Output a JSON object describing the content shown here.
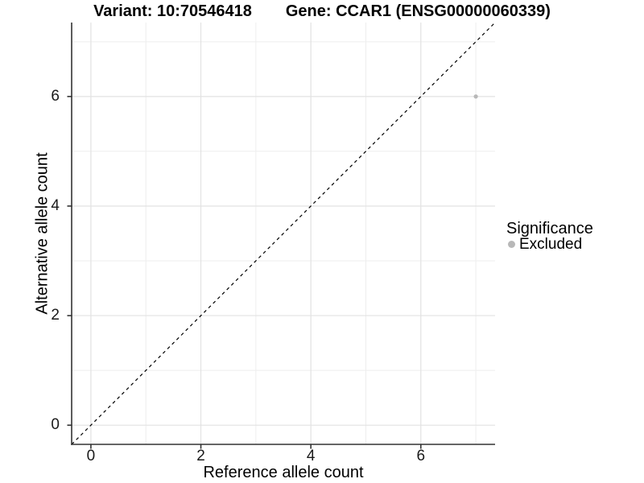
{
  "title": {
    "variant": "Variant: 10:70546418",
    "gene": "Gene: CCAR1 (ENSG00000060339)"
  },
  "axes": {
    "x_label": "Reference allele count",
    "y_label": "Alternative allele count",
    "x_tick_labels": [
      "0",
      "2",
      "4",
      "6"
    ],
    "y_tick_labels": [
      "0",
      "2",
      "4",
      "6"
    ]
  },
  "legend": {
    "title": "Significance",
    "items": [
      {
        "label": "Excluded",
        "color": "#b8b8b8"
      }
    ]
  },
  "colors": {
    "background": "#ffffff",
    "grid_major": "#e2e2e2",
    "grid_minor": "#eeeeee",
    "axis_line": "#333333",
    "tick_mark": "#333333",
    "tick_label": "#1a1a1a",
    "text": "#000000",
    "reference_line": "#000000",
    "point": "#b8b8b8"
  },
  "chart_data": {
    "type": "scatter",
    "title": "Variant: 10:70546418    Gene: CCAR1 (ENSG00000060339)",
    "xlabel": "Reference allele count",
    "ylabel": "Alternative allele count",
    "xlim": [
      -0.35,
      7.35
    ],
    "ylim": [
      -0.35,
      7.35
    ],
    "x_major_ticks": [
      0,
      2,
      4,
      6
    ],
    "y_major_ticks": [
      0,
      2,
      4,
      6
    ],
    "x_minor_gridlines": [
      1,
      3,
      5,
      7
    ],
    "y_minor_gridlines": [
      1,
      3,
      5,
      7
    ],
    "grid": true,
    "legend_position": "right",
    "reference_line": {
      "type": "identity",
      "style": "dashed",
      "color": "#000000"
    },
    "series": [
      {
        "name": "Excluded",
        "color": "#b8b8b8",
        "point_radius": 2.6,
        "points": [
          {
            "x": 7,
            "y": 6
          }
        ]
      }
    ]
  }
}
